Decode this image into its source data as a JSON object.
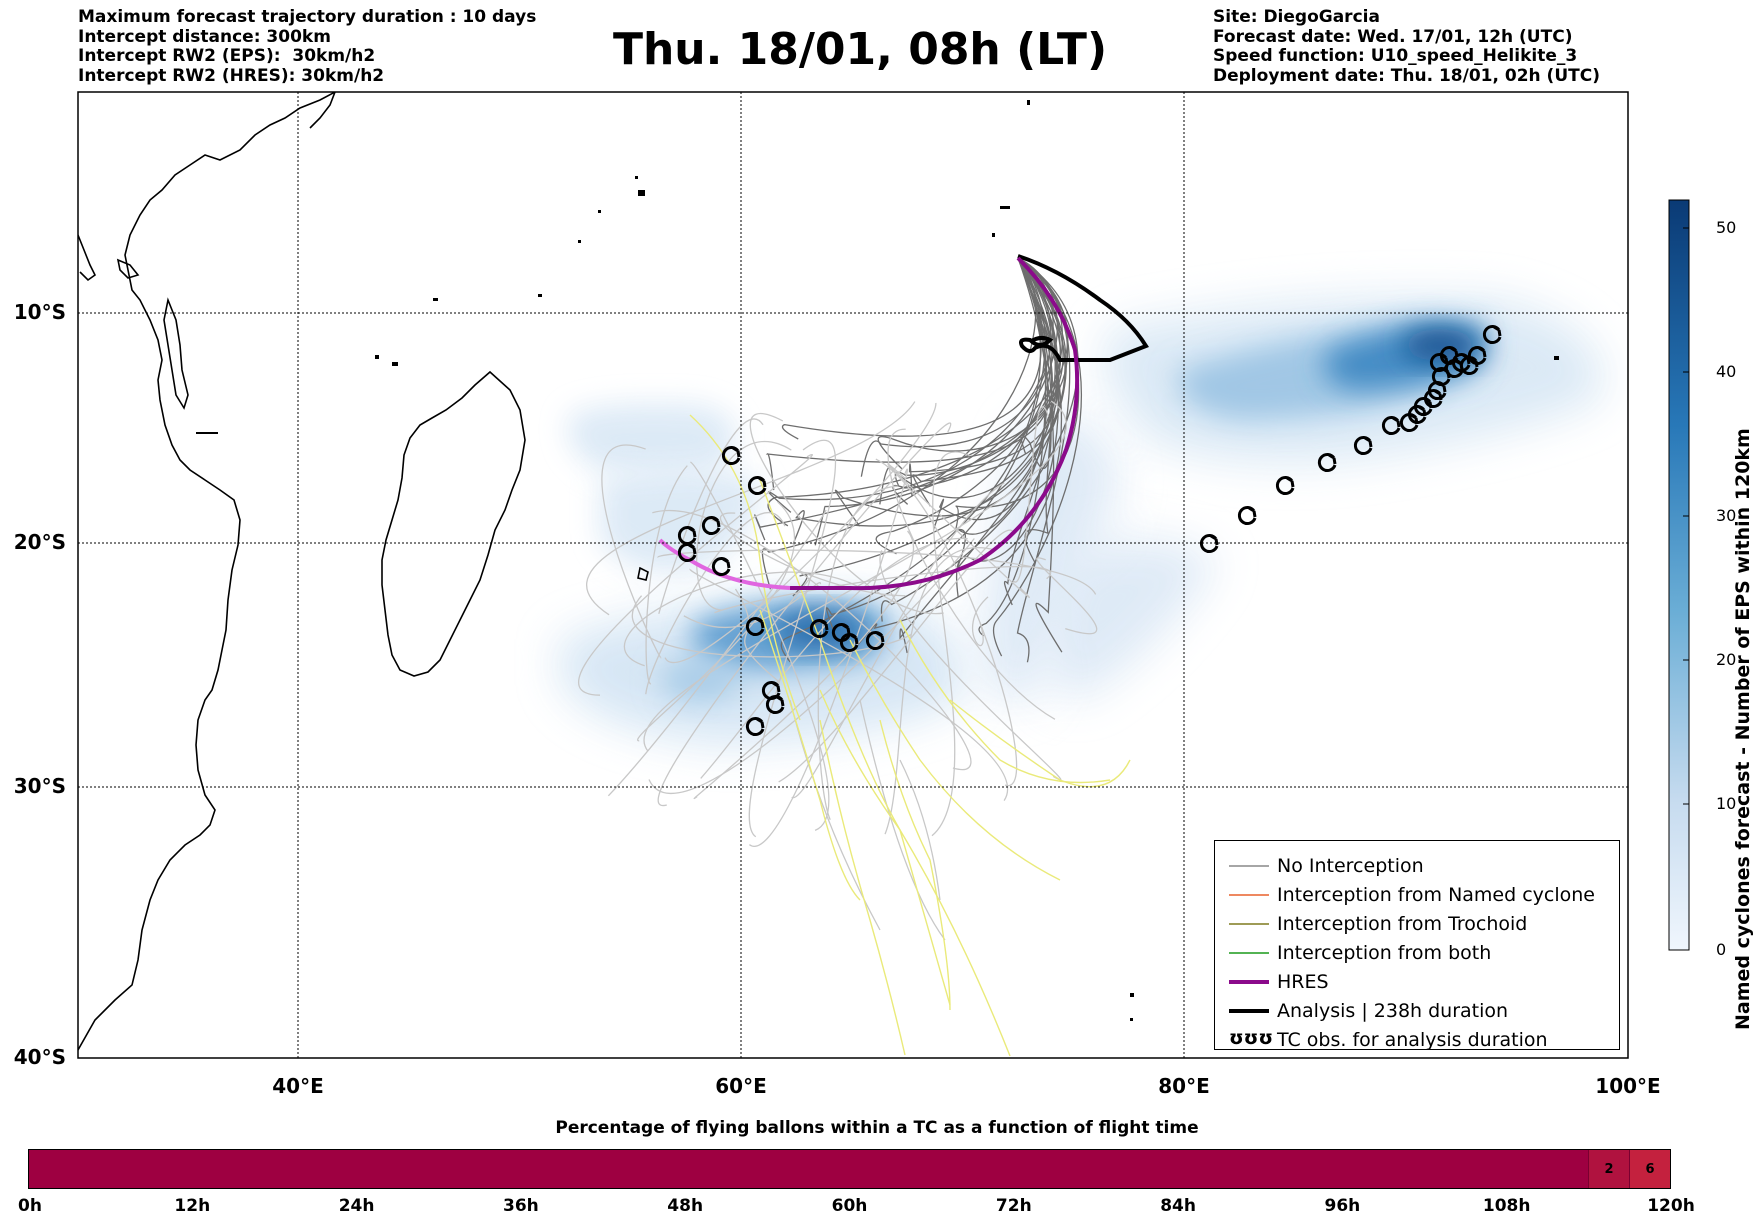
{
  "header": {
    "left_lines": [
      "Maximum forecast trajectory duration : 10 days",
      "Intercept distance: 300km",
      "Intercept RW2 (EPS):  30km/h2",
      "Intercept RW2 (HRES): 30km/h2"
    ],
    "title": "Thu. 18/01, 08h (LT)",
    "right_lines": [
      "Site: DiegoGarcia",
      "Forecast date: Wed. 17/01, 12h (UTC)",
      "Speed function: U10_speed_Helikite_3",
      "Deployment date: Thu. 18/01, 02h (UTC)"
    ]
  },
  "map": {
    "lon_range": [
      30,
      100
    ],
    "lat_range": [
      -40,
      0
    ],
    "lat_labels": [
      "10°S",
      "20°S",
      "30°S",
      "40°S"
    ],
    "lon_labels": [
      "40°E",
      "60°E",
      "80°E",
      "100°E"
    ],
    "density_color": "#2f7fc1",
    "analysis_color": "#000000",
    "hres_color": "#8b0a8b",
    "hres_tail_color": "#e066e0"
  },
  "colorbar": {
    "title": "Named cyclones forecast - Number of EPS within 120km",
    "ticks": [
      "50",
      "40",
      "30",
      "20",
      "10",
      "0"
    ],
    "range": [
      0,
      52
    ],
    "colors": [
      "#0a3a75",
      "#f0f6fd"
    ]
  },
  "legend": {
    "items": [
      {
        "label": "No Interception",
        "color": "#888888"
      },
      {
        "label": "Interception from Named cyclone",
        "color": "#e8602c"
      },
      {
        "label": "Interception from Trochoid",
        "color": "#7f7a1e"
      },
      {
        "label": "Interception from both",
        "color": "#1a9a1a"
      },
      {
        "label": "HRES",
        "color": "#8b0a8b"
      },
      {
        "label": "Analysis | 238h duration",
        "color": "#000000"
      },
      {
        "label": "TC obs. for analysis duration",
        "color": "#000000",
        "symbol": "ʊʊʊ"
      }
    ]
  },
  "percentage_bar": {
    "title": "Percentage of flying ballons within a TC as a function of flight time",
    "time_labels": [
      "0h",
      "12h",
      "24h",
      "36h",
      "48h",
      "60h",
      "72h",
      "84h",
      "96h",
      "108h",
      "120h"
    ],
    "segments": [
      {
        "value_label": "",
        "percent": 0,
        "color": "#9e0041"
      },
      {
        "value_label": "2",
        "percent": 2,
        "color": "#b0123f"
      },
      {
        "value_label": "6",
        "percent": 6,
        "color": "#c4213e"
      }
    ]
  }
}
